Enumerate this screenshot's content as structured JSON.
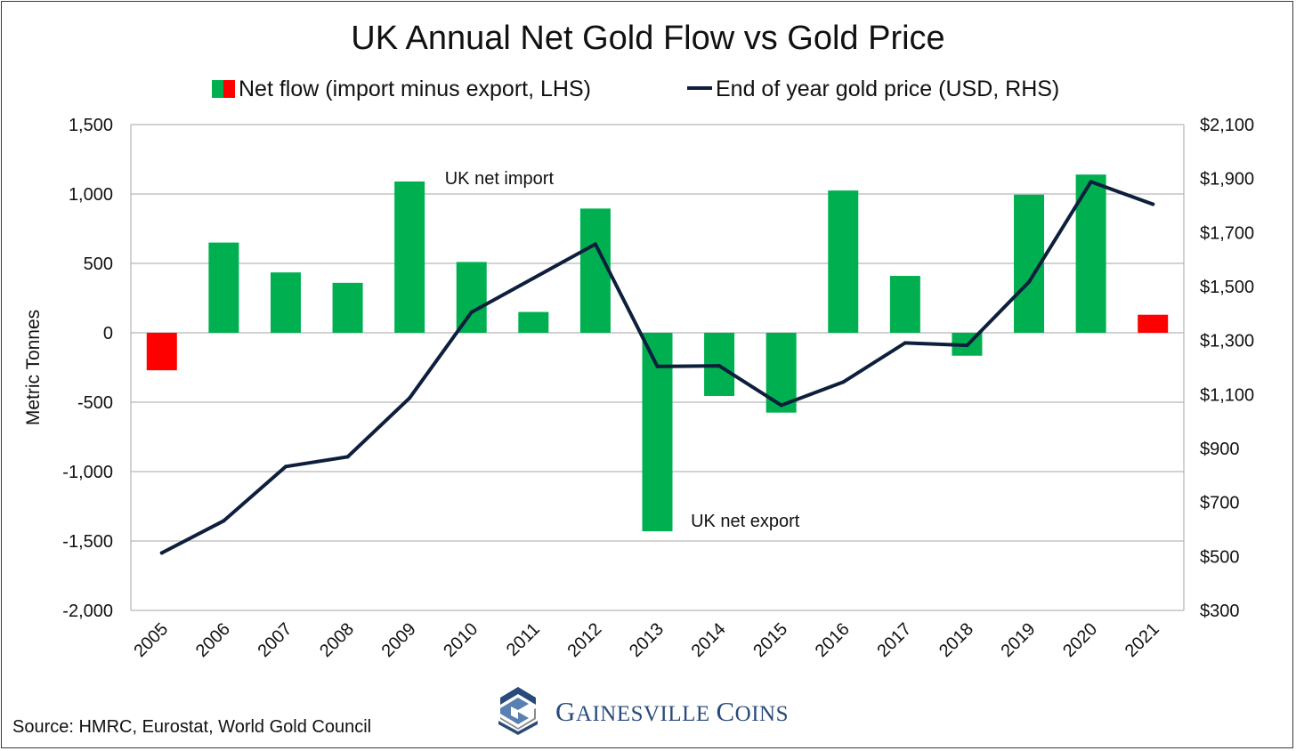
{
  "title": "UK Annual Net Gold Flow vs Gold Price",
  "legend": {
    "bars": "Net flow (import minus export, LHS)",
    "line": "End of year gold price (USD, RHS)"
  },
  "source": "Source: HMRC, Eurostat, World Gold Council",
  "logo": {
    "text_first": "G",
    "text_rest": "AINESVILLE ",
    "text_first2": "C",
    "text_rest2": "OINS",
    "icon": "gainesville-coins-logo-icon"
  },
  "colors": {
    "positive": "#00b050",
    "negative": "#ff0000",
    "line": "#0d1f3c",
    "grid": "#a6a6a6"
  },
  "chart_data": {
    "type": "bar",
    "title": "UK Annual Net Gold Flow vs Gold Price",
    "categories": [
      "2005",
      "2006",
      "2007",
      "2008",
      "2009",
      "2010",
      "2011",
      "2012",
      "2013",
      "2014",
      "2015",
      "2016",
      "2017",
      "2018",
      "2019",
      "2020",
      "2021"
    ],
    "series": [
      {
        "name": "Net flow (import minus export, LHS)",
        "axis": "left",
        "type": "bar",
        "values": [
          -270,
          650,
          435,
          360,
          1090,
          510,
          150,
          895,
          -1430,
          -455,
          -575,
          1025,
          410,
          -165,
          995,
          1140,
          130
        ],
        "bar_colors": [
          "#ff0000",
          "#00b050",
          "#00b050",
          "#00b050",
          "#00b050",
          "#00b050",
          "#00b050",
          "#00b050",
          "#00b050",
          "#00b050",
          "#00b050",
          "#00b050",
          "#00b050",
          "#00b050",
          "#00b050",
          "#00b050",
          "#ff0000"
        ]
      },
      {
        "name": "End of year gold price (USD, RHS)",
        "axis": "right",
        "type": "line",
        "values": [
          513,
          632,
          833,
          869,
          1087,
          1405,
          1531,
          1657,
          1204,
          1206,
          1060,
          1146,
          1291,
          1282,
          1517,
          1888,
          1805
        ]
      }
    ],
    "ylabel": "Metric Tonnes",
    "ylim": [
      -2000,
      1500
    ],
    "y_ticks": [
      "1,500",
      "1,000",
      "500",
      "0",
      "-500",
      "-1,000",
      "-1,500",
      "-2,000"
    ],
    "y_tick_values": [
      1500,
      1000,
      500,
      0,
      -500,
      -1000,
      -1500,
      -2000
    ],
    "y2lim": [
      300,
      2100
    ],
    "y2_ticks": [
      "$2,100",
      "$1,900",
      "$1,700",
      "$1,500",
      "$1,300",
      "$1,100",
      "$900",
      "$700",
      "$500",
      "$300"
    ],
    "y2_tick_values": [
      2100,
      1900,
      1700,
      1500,
      1300,
      1100,
      900,
      700,
      500,
      300
    ],
    "grid": true,
    "legend_position": "top",
    "annotations": [
      {
        "text": "UK net import",
        "near": "2010",
        "value": 1110
      },
      {
        "text": "UK net export",
        "near": "2014",
        "value": -1360
      }
    ]
  }
}
